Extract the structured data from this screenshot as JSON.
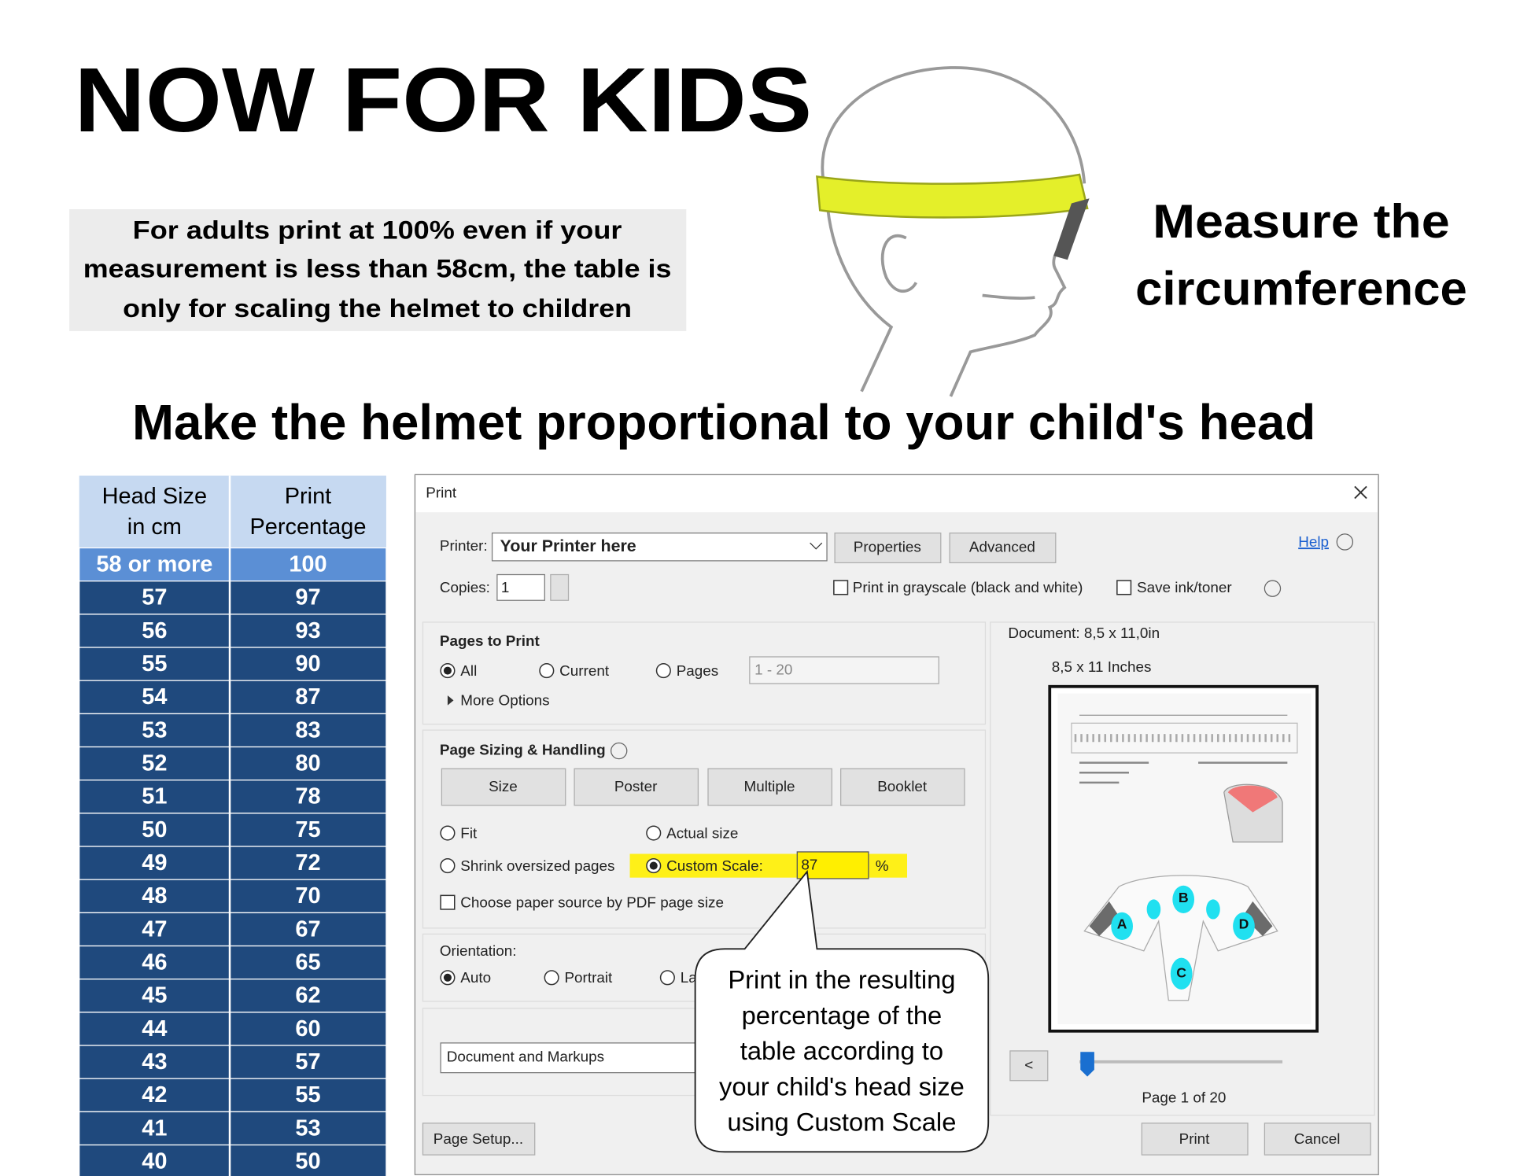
{
  "title": "NOW FOR KIDS",
  "note": {
    "lines": [
      "For adults print at 100% even if your",
      "measurement is less than 58cm, the table is",
      "only for scaling the helmet to children"
    ]
  },
  "measure": {
    "lines": [
      "Measure the",
      "circumference"
    ]
  },
  "subtitle": "Make the helmet proportional to your child's head",
  "table": {
    "headers": [
      [
        "Head Size",
        "in cm"
      ],
      [
        "Print",
        "Percentage"
      ]
    ],
    "rows": [
      [
        "58 or more",
        100
      ],
      [
        57,
        97
      ],
      [
        56,
        93
      ],
      [
        55,
        90
      ],
      [
        54,
        87
      ],
      [
        53,
        83
      ],
      [
        52,
        80
      ],
      [
        51,
        78
      ],
      [
        50,
        75
      ],
      [
        49,
        72
      ],
      [
        48,
        70
      ],
      [
        47,
        67
      ],
      [
        46,
        65
      ],
      [
        45,
        62
      ],
      [
        44,
        60
      ],
      [
        43,
        57
      ],
      [
        42,
        55
      ],
      [
        41,
        53
      ],
      [
        40,
        50
      ]
    ]
  },
  "dialog": {
    "title": "Print",
    "printer_label": "Printer:",
    "printer": "Your Printer here",
    "properties": "Properties",
    "advanced": "Advanced",
    "help": "Help",
    "copies_label": "Copies:",
    "copies": 1,
    "grayscale": "Print in grayscale (black and white)",
    "save_ink": "Save ink/toner",
    "pages_to_print": {
      "heading": "Pages to Print",
      "options": [
        "All",
        "Current",
        "Pages"
      ],
      "range": "1 - 20",
      "more": "More Options"
    },
    "sizing": {
      "heading": "Page Sizing & Handling",
      "tabs": [
        "Size",
        "Poster",
        "Multiple",
        "Booklet"
      ],
      "options": [
        "Fit",
        "Actual size",
        "Shrink oversized pages",
        "Custom Scale:"
      ],
      "scale": 87,
      "unit": "%",
      "paper_source": "Choose paper source by PDF page size"
    },
    "orientation": {
      "heading": "Orientation:",
      "options": [
        "Auto",
        "Portrait",
        "La"
      ]
    },
    "comments": "Document and Markups",
    "preview": {
      "document": "Document: 8,5 x 11,0in",
      "size": "8,5 x 11 Inches",
      "labels": [
        "A",
        "B",
        "C",
        "D"
      ],
      "prev": "<",
      "page": "Page 1 of 20"
    },
    "page_setup": "Page Setup...",
    "print": "Print",
    "cancel": "Cancel"
  },
  "callout": {
    "lines": [
      "Print in the resulting",
      "percentage of the",
      "table according to",
      "your child's head size",
      "using Custom Scale"
    ]
  }
}
